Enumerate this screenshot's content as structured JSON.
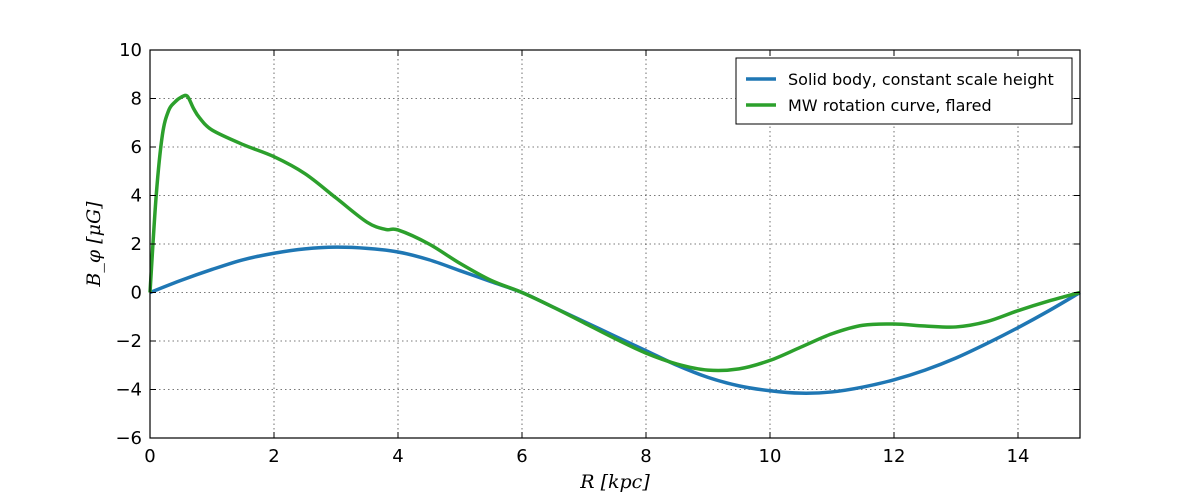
{
  "chart_data": {
    "type": "line",
    "title": "",
    "xlabel": "R [kpc]",
    "ylabel": "B_φ [μG]",
    "xlim": [
      0,
      15
    ],
    "ylim": [
      -6,
      10
    ],
    "xticks": [
      0,
      2,
      4,
      6,
      8,
      10,
      12,
      14
    ],
    "yticks": [
      -6,
      -4,
      -2,
      0,
      2,
      4,
      6,
      8,
      10
    ],
    "xtick_labels": [
      "0",
      "2",
      "4",
      "6",
      "8",
      "10",
      "12",
      "14"
    ],
    "ytick_labels": [
      "−6",
      "−4",
      "−2",
      "0",
      "2",
      "4",
      "6",
      "8",
      "10"
    ],
    "grid": true,
    "legend_position": "top-right",
    "series": [
      {
        "name": "Solid body, constant scale height",
        "color": "#1f77b4",
        "x": [
          0,
          0.5,
          1,
          1.5,
          2,
          2.5,
          3,
          3.5,
          4,
          4.5,
          5,
          5.5,
          6,
          6.5,
          7,
          7.5,
          8,
          8.5,
          9,
          9.5,
          10,
          10.5,
          11,
          11.5,
          12,
          12.5,
          13,
          13.5,
          14,
          14.5,
          15
        ],
        "y": [
          0,
          0.5,
          0.95,
          1.35,
          1.62,
          1.8,
          1.87,
          1.82,
          1.67,
          1.35,
          0.9,
          0.45,
          0,
          -0.6,
          -1.2,
          -1.8,
          -2.4,
          -3.0,
          -3.5,
          -3.85,
          -4.05,
          -4.15,
          -4.1,
          -3.9,
          -3.6,
          -3.2,
          -2.7,
          -2.1,
          -1.45,
          -0.75,
          0
        ]
      },
      {
        "name": "MW rotation curve, flared",
        "color": "#2ca02c",
        "x": [
          0,
          0.1,
          0.2,
          0.3,
          0.4,
          0.5,
          0.6,
          0.7,
          0.8,
          1,
          1.5,
          2,
          2.5,
          3,
          3.5,
          3.8,
          4,
          4.5,
          5,
          5.5,
          6,
          6.5,
          7,
          7.5,
          8,
          8.5,
          9,
          9.5,
          10,
          10.5,
          11,
          11.5,
          12,
          12.5,
          13,
          13.5,
          14,
          14.5,
          15
        ],
        "y": [
          0,
          4.0,
          6.5,
          7.5,
          7.85,
          8.05,
          8.1,
          7.6,
          7.2,
          6.7,
          6.1,
          5.6,
          4.9,
          3.9,
          2.9,
          2.6,
          2.58,
          2.0,
          1.2,
          0.5,
          0,
          -0.6,
          -1.25,
          -1.9,
          -2.5,
          -2.95,
          -3.2,
          -3.15,
          -2.8,
          -2.25,
          -1.7,
          -1.35,
          -1.3,
          -1.38,
          -1.42,
          -1.2,
          -0.75,
          -0.35,
          0
        ]
      }
    ]
  }
}
